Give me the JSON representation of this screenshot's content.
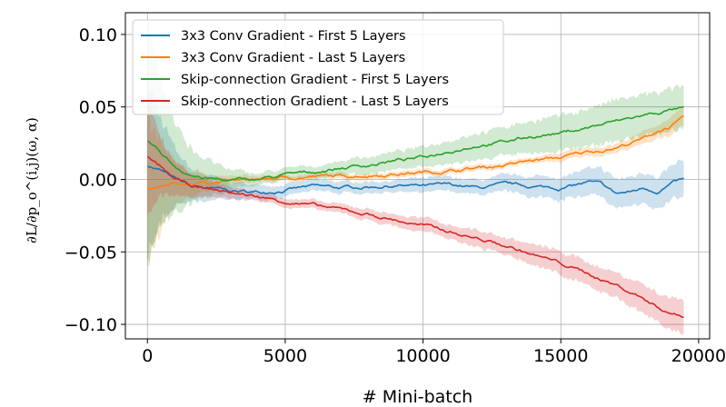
{
  "chart_data": {
    "type": "line",
    "title": "",
    "xlabel": "# Mini-batch",
    "ylabel": "∂L/∂p_o^(i,j)(ω, α)",
    "xlim": [
      -800,
      20400
    ],
    "ylim": [
      -0.11,
      0.115
    ],
    "xticks": [
      0,
      5000,
      10000,
      15000,
      20000
    ],
    "xtick_labels": [
      "0",
      "5000",
      "10000",
      "15000",
      "20000"
    ],
    "yticks": [
      0.1,
      0.05,
      0.0,
      -0.05,
      -0.1
    ],
    "ytick_labels": [
      "0.10",
      "0.05",
      "0.00",
      "−0.05",
      "−0.10"
    ],
    "grid": true,
    "legend_position": "top-left",
    "series": [
      {
        "name": "3x3 Conv Gradient - First 5 Layers",
        "color": "#1f77b4",
        "x": [
          0,
          500,
          1000,
          1500,
          2000,
          3000,
          4000,
          5000,
          6000,
          7000,
          8000,
          9000,
          10000,
          11000,
          12000,
          13000,
          14000,
          15000,
          16000,
          16500,
          17000,
          17500,
          18000,
          18500,
          19000,
          19500
        ],
        "y": [
          0.01,
          0.006,
          0.0,
          -0.004,
          -0.006,
          -0.008,
          -0.009,
          -0.007,
          -0.005,
          -0.006,
          -0.005,
          -0.004,
          -0.005,
          -0.004,
          -0.006,
          -0.004,
          -0.005,
          -0.006,
          -0.002,
          -0.004,
          -0.01,
          -0.009,
          -0.006,
          -0.008,
          -0.003,
          0.0
        ],
        "band": [
          0.06,
          0.035,
          0.02,
          0.012,
          0.01,
          0.006,
          0.005,
          0.004,
          0.004,
          0.004,
          0.004,
          0.004,
          0.005,
          0.005,
          0.005,
          0.006,
          0.007,
          0.008,
          0.009,
          0.01,
          0.01,
          0.01,
          0.011,
          0.011,
          0.012,
          0.013
        ]
      },
      {
        "name": "3x3 Conv Gradient - Last 5 Layers",
        "color": "#ff7f0e",
        "x": [
          0,
          500,
          1000,
          1500,
          2000,
          3000,
          4000,
          5000,
          6000,
          7000,
          8000,
          9000,
          10000,
          11000,
          12000,
          13000,
          14000,
          15000,
          16000,
          17000,
          18000,
          18500,
          19000,
          19500
        ],
        "y": [
          -0.007,
          -0.006,
          -0.004,
          -0.003,
          -0.002,
          -0.001,
          0.0,
          0.001,
          0.002,
          0.002,
          0.003,
          0.004,
          0.005,
          0.006,
          0.008,
          0.01,
          0.013,
          0.015,
          0.019,
          0.022,
          0.028,
          0.033,
          0.037,
          0.042
        ],
        "band": [
          0.05,
          0.03,
          0.015,
          0.009,
          0.006,
          0.003,
          0.002,
          0.002,
          0.002,
          0.002,
          0.002,
          0.002,
          0.002,
          0.002,
          0.002,
          0.002,
          0.002,
          0.003,
          0.003,
          0.003,
          0.004,
          0.005,
          0.006,
          0.007
        ]
      },
      {
        "name": "Skip-connection Gradient - First 5 Layers",
        "color": "#2ca02c",
        "x": [
          0,
          500,
          1000,
          1500,
          2000,
          3000,
          4000,
          5000,
          6000,
          7000,
          8000,
          9000,
          10000,
          11000,
          12000,
          13000,
          14000,
          15000,
          16000,
          17000,
          18000,
          18500,
          19000,
          19500
        ],
        "y": [
          0.027,
          0.018,
          0.009,
          0.004,
          0.001,
          -0.001,
          0.0,
          0.003,
          0.005,
          0.008,
          0.01,
          0.013,
          0.015,
          0.02,
          0.024,
          0.026,
          0.03,
          0.032,
          0.036,
          0.04,
          0.044,
          0.046,
          0.048,
          0.049
        ],
        "band": [
          0.08,
          0.05,
          0.03,
          0.02,
          0.014,
          0.007,
          0.004,
          0.004,
          0.004,
          0.005,
          0.006,
          0.006,
          0.007,
          0.008,
          0.009,
          0.01,
          0.011,
          0.012,
          0.013,
          0.014,
          0.014,
          0.014,
          0.014,
          0.015
        ]
      },
      {
        "name": "Skip-connection Gradient - Last 5 Layers",
        "color": "#d62728",
        "x": [
          0,
          500,
          1000,
          1500,
          2000,
          3000,
          4000,
          5000,
          6000,
          7000,
          8000,
          9000,
          10000,
          11000,
          12000,
          13000,
          14000,
          15000,
          16000,
          17000,
          18000,
          18500,
          19000,
          19500
        ],
        "y": [
          0.015,
          0.008,
          0.0,
          -0.004,
          -0.006,
          -0.009,
          -0.012,
          -0.015,
          -0.018,
          -0.021,
          -0.024,
          -0.028,
          -0.032,
          -0.036,
          -0.041,
          -0.046,
          -0.052,
          -0.058,
          -0.065,
          -0.073,
          -0.082,
          -0.088,
          -0.092,
          -0.095
        ],
        "band": [
          0.04,
          0.02,
          0.012,
          0.008,
          0.006,
          0.004,
          0.003,
          0.003,
          0.003,
          0.003,
          0.004,
          0.004,
          0.005,
          0.005,
          0.006,
          0.006,
          0.007,
          0.008,
          0.008,
          0.009,
          0.01,
          0.01,
          0.011,
          0.011
        ]
      }
    ]
  }
}
